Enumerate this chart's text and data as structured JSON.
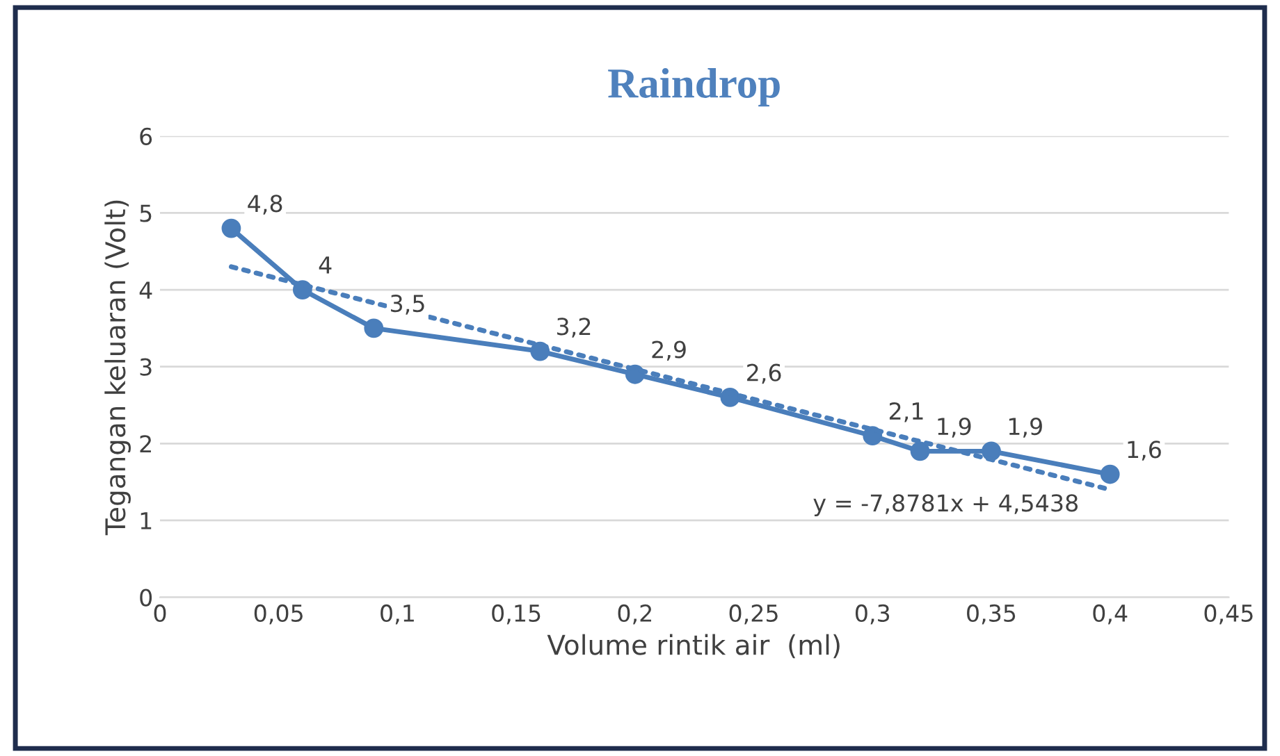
{
  "chart_data": {
    "type": "line",
    "title": "Raindrop",
    "xlabel": "Volume rintik air  (ml)",
    "ylabel": "Tegangan keluaran (Volt)",
    "series": [
      {
        "color": "#4a7ebb",
        "marker": "circle",
        "line_style": "solid",
        "x": [
          0.03,
          0.06,
          0.09,
          0.16,
          0.2,
          0.24,
          0.3,
          0.32,
          0.35,
          0.4
        ],
        "values": [
          4.8,
          4,
          3.5,
          3.2,
          2.9,
          2.6,
          2.1,
          1.9,
          1.9,
          1.6
        ],
        "value_labels": [
          "4,8",
          "4",
          "3,5",
          "3,2",
          "2,9",
          "2,6",
          "2,1",
          "1,9",
          "1,9",
          "1,6"
        ]
      },
      {
        "type": "line",
        "color": "#4a7ebb",
        "marker": "none",
        "line_style": "dotted",
        "x": [
          0.03,
          0.4
        ],
        "values": [
          4.3,
          1.4
        ]
      }
    ],
    "annotations": [
      "y = -7,8781x + 4,5438"
    ],
    "xlim": [
      0,
      0.45
    ],
    "ylim": [
      0,
      6
    ],
    "xticks": [
      0,
      {
        "value": 0.05,
        "label": "0,05"
      },
      {
        "value": 0.1,
        "label": "0,1"
      },
      {
        "value": 0.15,
        "label": "0,15"
      },
      {
        "value": 0.2,
        "label": "0,2"
      },
      {
        "value": 0.25,
        "label": "0,25"
      },
      {
        "value": 0.3,
        "label": "0,3"
      },
      {
        "value": 0.35,
        "label": "0,35"
      },
      {
        "value": 0.4,
        "label": "0,4"
      },
      {
        "value": 0.45,
        "label": "0,45"
      }
    ],
    "yticks": [
      0,
      1,
      2,
      3,
      4,
      5,
      6
    ],
    "grid": "y",
    "legend": false
  }
}
